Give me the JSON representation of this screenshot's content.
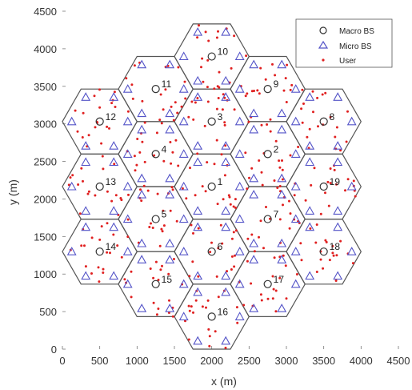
{
  "chart_data": {
    "type": "scatter",
    "title": "",
    "xlabel": "x  (m)",
    "ylabel": "y  (m)",
    "xlim": [
      0,
      4500
    ],
    "ylim": [
      0,
      4500
    ],
    "xticks": [
      0,
      500,
      1000,
      1500,
      2000,
      2500,
      3000,
      3500,
      4000,
      4500
    ],
    "yticks": [
      0,
      500,
      1000,
      1500,
      2000,
      2500,
      3000,
      3500,
      4000,
      4500
    ],
    "grid": false,
    "legend_position": "top-right",
    "legend": [
      {
        "label": "Macro BS",
        "marker": "circle",
        "color": "#333333"
      },
      {
        "label": "Micro BS",
        "marker": "triangle",
        "color": "#5555c8"
      },
      {
        "label": "User",
        "marker": "dot",
        "color": "#e02020"
      }
    ],
    "hex_radius": 500,
    "macro_bs": [
      {
        "id": "1",
        "x": 2000,
        "y": 2165
      },
      {
        "id": "2",
        "x": 2750,
        "y": 2598
      },
      {
        "id": "3",
        "x": 2000,
        "y": 3031
      },
      {
        "id": "4",
        "x": 1250,
        "y": 2598
      },
      {
        "id": "5",
        "x": 1250,
        "y": 1732
      },
      {
        "id": "6",
        "x": 2000,
        "y": 1299
      },
      {
        "id": "7",
        "x": 2750,
        "y": 1732
      },
      {
        "id": "8",
        "x": 3500,
        "y": 3031
      },
      {
        "id": "9",
        "x": 2750,
        "y": 3464
      },
      {
        "id": "10",
        "x": 2000,
        "y": 3897
      },
      {
        "id": "11",
        "x": 1250,
        "y": 3464
      },
      {
        "id": "12",
        "x": 500,
        "y": 3031
      },
      {
        "id": "13",
        "x": 500,
        "y": 2165
      },
      {
        "id": "14",
        "x": 500,
        "y": 1299
      },
      {
        "id": "15",
        "x": 1250,
        "y": 866
      },
      {
        "id": "16",
        "x": 2000,
        "y": 433
      },
      {
        "id": "17",
        "x": 2750,
        "y": 866
      },
      {
        "id": "18",
        "x": 3500,
        "y": 1299
      },
      {
        "id": "19",
        "x": 3500,
        "y": 2165
      }
    ],
    "micro_bs_per_cell": 6,
    "micro_bs_offset": 375,
    "users_per_cell": 20,
    "colors": {
      "hex_edge": "#555555",
      "macro": "#333333",
      "micro": "#5555c8",
      "user": "#e02020"
    }
  }
}
